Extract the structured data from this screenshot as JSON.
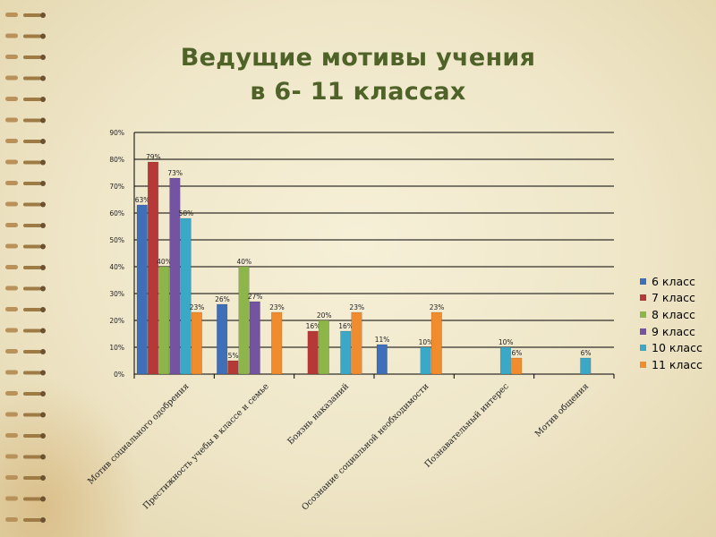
{
  "title": {
    "line1": "Ведущие мотивы учения",
    "line2": "в 6- 11 классах"
  },
  "colors": {
    "title": "#4f6228",
    "background": "#efe6c8",
    "gridline": "#000000"
  },
  "chart_data": {
    "type": "bar",
    "categories": [
      "Мотив социального одобрения",
      "Престижность учебы в классе и семье",
      "Боязнь наказаний",
      "Осознание социальной необходимости",
      "Познавательный интерес",
      "Мотив общения"
    ],
    "series": [
      {
        "name": "6 класс",
        "color": "#3f6fb8",
        "values": [
          63,
          26,
          null,
          11,
          null,
          null
        ],
        "labels": [
          "63%",
          "26%",
          null,
          "11%",
          null,
          null
        ]
      },
      {
        "name": "7 класс",
        "color": "#b53a37",
        "values": [
          79,
          5,
          16,
          null,
          null,
          null
        ],
        "labels": [
          "79%",
          "5%",
          "16%",
          null,
          null,
          null
        ]
      },
      {
        "name": "8 класс",
        "color": "#8db64a",
        "values": [
          40,
          40,
          20,
          null,
          null,
          null
        ],
        "labels": [
          "40%",
          "40%",
          "20%",
          null,
          null,
          null
        ]
      },
      {
        "name": "9 класс",
        "color": "#7454a0",
        "values": [
          73,
          27,
          null,
          null,
          null,
          null
        ],
        "labels": [
          "73%",
          "27%",
          null,
          null,
          null,
          null
        ]
      },
      {
        "name": "10 класс",
        "color": "#3aa8c6",
        "values": [
          58,
          null,
          16,
          10,
          10,
          6
        ],
        "labels": [
          "58%",
          null,
          "16%",
          "10%",
          "10%",
          "6%"
        ]
      },
      {
        "name": "11 класс",
        "color": "#f08c2e",
        "values": [
          23,
          23,
          23,
          23,
          6,
          null
        ],
        "labels": [
          "23%",
          "23%",
          "23%",
          "23%",
          "6%",
          null
        ]
      }
    ],
    "ylim": [
      0,
      90
    ],
    "yticks": [
      "0%",
      "10%",
      "20%",
      "30%",
      "40%",
      "50%",
      "60%",
      "70%",
      "80%",
      "90%"
    ],
    "grid": true,
    "legend": "right"
  }
}
